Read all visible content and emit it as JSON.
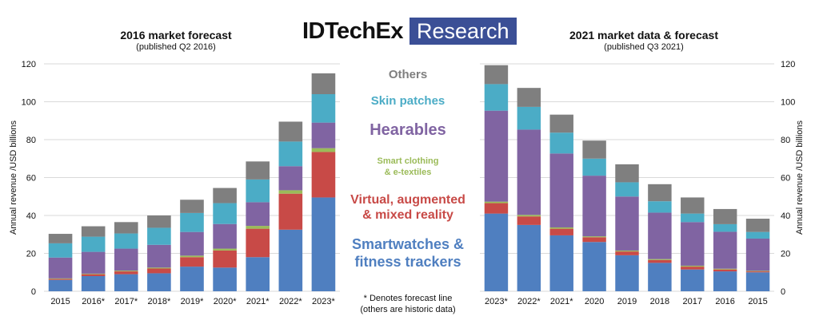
{
  "logo": {
    "main": "IDTechEx",
    "box": "Research"
  },
  "legend": {
    "others": "Others",
    "skin_patches": "Skin patches",
    "hearables": "Hearables",
    "smart_clothing_1": "Smart clothing",
    "smart_clothing_2": "& e-textiles",
    "vr_1": "Virtual, augmented",
    "vr_2": "& mixed reality",
    "sw_1": "Smartwatches &",
    "sw_2": "fitness trackers"
  },
  "footnote": {
    "line1": "* Denotes forecast line",
    "line2": "(others are historic data)"
  },
  "colors": {
    "smartwatches": "#4f7fc0",
    "vr": "#c84a47",
    "smart_clothing": "#9bbb59",
    "hearables": "#8064a2",
    "skin_patches": "#4bacc6",
    "others": "#7f7f7f"
  },
  "chart_data": [
    {
      "type": "bar",
      "stacked": true,
      "title": "2016 market forecast",
      "subtitle": "(published Q2 2016)",
      "ylabel": "Annual revenue /USD billions",
      "ylim": [
        0,
        120
      ],
      "yticks": [
        0,
        20,
        40,
        60,
        80,
        100,
        120
      ],
      "grid": true,
      "categories": [
        "2015",
        "2016*",
        "2017*",
        "2018*",
        "2019*",
        "2020*",
        "2021*",
        "2022*",
        "2023*"
      ],
      "series": [
        {
          "name": "Smartwatches & fitness trackers",
          "values": [
            6,
            8,
            9,
            9.5,
            13,
            12.5,
            18,
            32.5,
            49.5
          ]
        },
        {
          "name": "Virtual, augmented & mixed reality",
          "values": [
            0.5,
            1,
            1.5,
            2.5,
            5,
            9,
            15,
            19,
            24
          ]
        },
        {
          "name": "Smart clothing & e-textiles",
          "values": [
            0.3,
            0.3,
            0.4,
            0.5,
            0.8,
            1,
            1.5,
            1.8,
            2
          ]
        },
        {
          "name": "Hearables",
          "values": [
            11,
            11.5,
            11.6,
            12,
            12.5,
            13,
            12.5,
            12.7,
            13.5
          ]
        },
        {
          "name": "Skin patches",
          "values": [
            7.5,
            8,
            8,
            9,
            10,
            11,
            12,
            13,
            15
          ]
        },
        {
          "name": "Others",
          "values": [
            5,
            5.5,
            6,
            6.5,
            7,
            8,
            9.5,
            10.5,
            11
          ]
        }
      ]
    },
    {
      "type": "bar",
      "stacked": true,
      "title": "2021 market data & forecast",
      "subtitle": "(published Q3 2021)",
      "ylabel": "Annual revenue /USD billions",
      "ylim": [
        0,
        120
      ],
      "yticks": [
        0,
        20,
        40,
        60,
        80,
        100,
        120
      ],
      "grid": true,
      "categories": [
        "2023*",
        "2022*",
        "2021*",
        "2020",
        "2019",
        "2018",
        "2017",
        "2016",
        "2015"
      ],
      "series": [
        {
          "name": "Smartwatches & fitness trackers",
          "values": [
            41,
            35,
            29.5,
            26,
            19,
            15,
            11.5,
            10.5,
            10
          ]
        },
        {
          "name": "Virtual, augmented & mixed reality",
          "values": [
            5.5,
            4.5,
            3.5,
            2.5,
            2,
            1.5,
            1.5,
            1,
            0.5
          ]
        },
        {
          "name": "Smart clothing & e-textiles",
          "values": [
            0.8,
            0.8,
            0.7,
            0.5,
            0.5,
            0.5,
            0.5,
            0.4,
            0.3
          ]
        },
        {
          "name": "Hearables",
          "values": [
            48,
            45,
            39,
            32,
            28.5,
            24.5,
            23,
            19.5,
            17
          ]
        },
        {
          "name": "Skin patches",
          "values": [
            14,
            12,
            11,
            9,
            7.5,
            6,
            4.5,
            4,
            3.5
          ]
        },
        {
          "name": "Others",
          "values": [
            10,
            10,
            9.5,
            9.5,
            9.5,
            9,
            8.5,
            8,
            7
          ]
        }
      ]
    }
  ]
}
